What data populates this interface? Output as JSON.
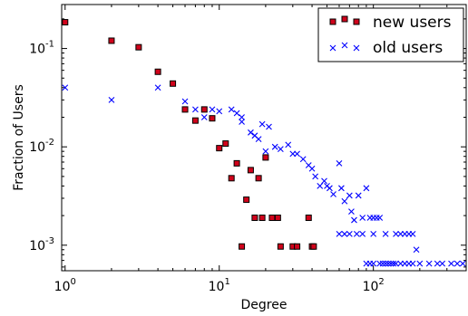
{
  "chart_data": {
    "type": "scatter",
    "xlabel": "Degree",
    "ylabel": "Fraction of Users",
    "x_scale": "log",
    "y_scale": "log",
    "xlim": [
      0.95,
      400
    ],
    "ylim": [
      0.00055,
      0.28
    ],
    "x_ticks": [
      {
        "value": 1,
        "base": "10",
        "exp": "0"
      },
      {
        "value": 10,
        "base": "10",
        "exp": "1"
      },
      {
        "value": 100,
        "base": "10",
        "exp": "2"
      }
    ],
    "y_ticks": [
      {
        "value": 0.1,
        "base": "10",
        "exp": "-1"
      },
      {
        "value": 0.01,
        "base": "10",
        "exp": "-2"
      },
      {
        "value": 0.001,
        "base": "10",
        "exp": "-3"
      }
    ],
    "grid": false,
    "legend_position": "top-right",
    "series": [
      {
        "name": "new users",
        "marker": "square",
        "color": "#d0021b",
        "edge_color": "#000000",
        "points": [
          [
            1,
            0.185
          ],
          [
            2,
            0.12
          ],
          [
            3,
            0.103
          ],
          [
            4,
            0.058
          ],
          [
            5,
            0.044
          ],
          [
            6,
            0.024
          ],
          [
            7,
            0.0185
          ],
          [
            8,
            0.024
          ],
          [
            9,
            0.0195
          ],
          [
            10,
            0.0097
          ],
          [
            11,
            0.0108
          ],
          [
            12,
            0.0048
          ],
          [
            13,
            0.0068
          ],
          [
            14,
            0.00097
          ],
          [
            15,
            0.0029
          ],
          [
            16,
            0.0058
          ],
          [
            17,
            0.0019
          ],
          [
            18,
            0.0048
          ],
          [
            19,
            0.0019
          ],
          [
            20,
            0.0078
          ],
          [
            22,
            0.0019
          ],
          [
            24,
            0.0019
          ],
          [
            25,
            0.00097
          ],
          [
            30,
            0.00097
          ],
          [
            32,
            0.00097
          ],
          [
            38,
            0.0019
          ],
          [
            40,
            0.00097
          ],
          [
            41,
            0.00097
          ]
        ]
      },
      {
        "name": "old users",
        "marker": "x",
        "color": "#0000ff",
        "points": [
          [
            1,
            0.04
          ],
          [
            2,
            0.03
          ],
          [
            4,
            0.04
          ],
          [
            6,
            0.029
          ],
          [
            7,
            0.024
          ],
          [
            8,
            0.02
          ],
          [
            9,
            0.024
          ],
          [
            10,
            0.023
          ],
          [
            12,
            0.024
          ],
          [
            13,
            0.022
          ],
          [
            14,
            0.02
          ],
          [
            14,
            0.018
          ],
          [
            16,
            0.014
          ],
          [
            17,
            0.013
          ],
          [
            18,
            0.012
          ],
          [
            19,
            0.017
          ],
          [
            20,
            0.009
          ],
          [
            21,
            0.016
          ],
          [
            23,
            0.01
          ],
          [
            25,
            0.0095
          ],
          [
            28,
            0.0105
          ],
          [
            30,
            0.0085
          ],
          [
            32,
            0.0085
          ],
          [
            35,
            0.0075
          ],
          [
            38,
            0.0065
          ],
          [
            40,
            0.006
          ],
          [
            42,
            0.005
          ],
          [
            45,
            0.004
          ],
          [
            48,
            0.0045
          ],
          [
            50,
            0.004
          ],
          [
            52,
            0.0038
          ],
          [
            55,
            0.0033
          ],
          [
            60,
            0.0068
          ],
          [
            62,
            0.0038
          ],
          [
            65,
            0.0028
          ],
          [
            70,
            0.0032
          ],
          [
            72,
            0.0022
          ],
          [
            75,
            0.0018
          ],
          [
            80,
            0.0032
          ],
          [
            85,
            0.0019
          ],
          [
            90,
            0.0038
          ],
          [
            95,
            0.0019
          ],
          [
            100,
            0.0019
          ],
          [
            105,
            0.0019
          ],
          [
            110,
            0.0019
          ],
          [
            60,
            0.0013
          ],
          [
            65,
            0.0013
          ],
          [
            70,
            0.0013
          ],
          [
            78,
            0.0013
          ],
          [
            85,
            0.0013
          ],
          [
            100,
            0.0013
          ],
          [
            120,
            0.0013
          ],
          [
            140,
            0.0013
          ],
          [
            150,
            0.0013
          ],
          [
            160,
            0.0013
          ],
          [
            170,
            0.0013
          ],
          [
            90,
            0.00065
          ],
          [
            95,
            0.00065
          ],
          [
            100,
            0.00065
          ],
          [
            110,
            0.00065
          ],
          [
            115,
            0.00065
          ],
          [
            120,
            0.00065
          ],
          [
            125,
            0.00065
          ],
          [
            130,
            0.00065
          ],
          [
            135,
            0.00065
          ],
          [
            140,
            0.00065
          ],
          [
            150,
            0.00065
          ],
          [
            160,
            0.00065
          ],
          [
            170,
            0.00065
          ],
          [
            180,
            0.00065
          ],
          [
            200,
            0.00065
          ],
          [
            230,
            0.00065
          ],
          [
            260,
            0.00065
          ],
          [
            280,
            0.00065
          ],
          [
            320,
            0.00065
          ],
          [
            350,
            0.00065
          ],
          [
            380,
            0.00065
          ],
          [
            190,
            0.0009
          ],
          [
            180,
            0.0013
          ]
        ]
      }
    ]
  }
}
